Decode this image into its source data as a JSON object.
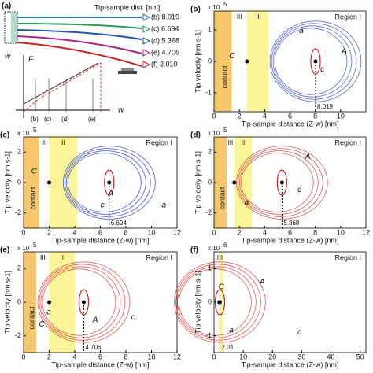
{
  "panel_a": {
    "label": "(a)",
    "legend_title": "Tip-sample dist. [nm]",
    "entries": [
      "(b) 8.019",
      "(c) 6.694",
      "(d) 5.368",
      "(e) 4.706",
      "(f) 2.010"
    ],
    "w_top": "w",
    "force_axis": "F",
    "w_bottom": "w",
    "markers": [
      "(b)",
      "(c)",
      "(d)",
      "(e)"
    ]
  },
  "panels": [
    {
      "label": "(b)",
      "x_label": "Tip-sample distance (Z-w) [nm]",
      "y_label": "Tip velocity [nm s-1]",
      "scale": "x 10",
      "exponent": "5",
      "xlim": [
        0,
        12
      ],
      "ylim": [
        -1.6,
        1.6
      ],
      "xticks": [
        0,
        2,
        4,
        6,
        8,
        10
      ],
      "yticks": [
        -1,
        0,
        1
      ],
      "regions": [
        {
          "name": "contact",
          "range": [
            0,
            1.4
          ]
        },
        {
          "name": "III",
          "range": [
            1.4,
            2.6
          ]
        },
        {
          "name": "II",
          "range": [
            2.6,
            4.3
          ]
        }
      ],
      "region_I": "Region I",
      "cut_distance": 8.019,
      "points": [
        "C",
        "a",
        "A",
        "c"
      ],
      "color": "#3344cc"
    },
    {
      "label": "(c)",
      "x_label": "Tip-sample distance (Z-w) [nm]",
      "y_label": "Tip velocity [nm s-1]",
      "scale": "x 10",
      "exponent": "5",
      "xlim": [
        0,
        12
      ],
      "ylim": [
        -3,
        3
      ],
      "xticks": [
        0,
        2,
        4,
        6,
        8,
        10,
        12
      ],
      "yticks": [
        -2,
        0,
        2
      ],
      "regions": [
        {
          "name": "contact",
          "range": [
            0,
            1.2
          ]
        },
        {
          "name": "III",
          "range": [
            1.2,
            2.0
          ]
        },
        {
          "name": "II",
          "range": [
            2.0,
            4.2
          ]
        }
      ],
      "region_I": "Region I",
      "cut_distance": 6.694,
      "points": [
        "C",
        "A",
        "c",
        "a"
      ],
      "color": "#1a2fd6"
    },
    {
      "label": "(d)",
      "x_label": "Tip-sample distance (Z-w) [nm]",
      "y_label": "Tip velocity [nm s-1]",
      "scale": "x 10",
      "exponent": "5",
      "xlim": [
        0,
        12
      ],
      "ylim": [
        -3,
        3
      ],
      "xticks": [
        0,
        2,
        4,
        6,
        8,
        10,
        12
      ],
      "yticks": [
        -2,
        0,
        2
      ],
      "regions": [
        {
          "name": "contact",
          "range": [
            0,
            1.0
          ]
        },
        {
          "name": "III",
          "range": [
            1.0,
            1.6
          ]
        },
        {
          "name": "II",
          "range": [
            1.6,
            3.0
          ]
        }
      ],
      "region_I": "Region I",
      "cut_distance": 5.368,
      "points": [
        "A",
        "c",
        "a"
      ],
      "color": "#cc3333"
    },
    {
      "label": "(e)",
      "x_label": "Tip-sample distance (Z-w) [nm]",
      "y_label": "Tip velocity [nm s-1]",
      "scale": "x 10",
      "exponent": "5",
      "xlim": [
        0,
        12
      ],
      "ylim": [
        -3,
        3
      ],
      "xticks": [
        0,
        2,
        4,
        6,
        8,
        10,
        12
      ],
      "yticks": [
        -2,
        0,
        2
      ],
      "regions": [
        {
          "name": "contact",
          "range": [
            0,
            1.0
          ]
        },
        {
          "name": "III",
          "range": [
            1.0,
            2.0
          ]
        },
        {
          "name": "II",
          "range": [
            2.0,
            4.0
          ]
        }
      ],
      "region_I": "Region I",
      "cut_distance": 4.706,
      "points": [
        "C",
        "a",
        "A",
        "c"
      ],
      "color": "#dd3333"
    },
    {
      "label": "(f)",
      "x_label": "Tip-sample distance (Z-w) [nm]",
      "y_label": "Tip velocity [nm s-1]",
      "scale": "x 10",
      "exponent": "6",
      "xlim": [
        0,
        52
      ],
      "ylim": [
        -1.5,
        1.5
      ],
      "xticks": [
        0,
        10,
        20,
        30,
        40,
        50
      ],
      "yticks": [
        -1,
        0,
        1
      ],
      "regions": [
        {
          "name": "III",
          "range": [
            0.8,
            1.8
          ]
        },
        {
          "name": "II",
          "range": [
            1.8,
            3.0
          ]
        }
      ],
      "region_I": "Region I",
      "cut_distance": 2.01,
      "points": [
        "C",
        "a",
        "A",
        "c"
      ],
      "color": "#dd3333"
    }
  ]
}
